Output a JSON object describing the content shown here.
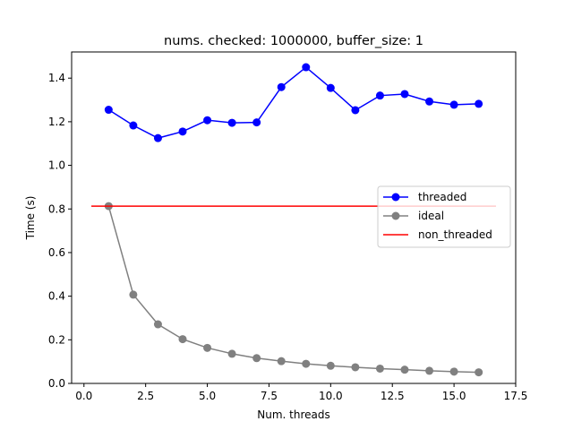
{
  "chart_data": {
    "type": "line",
    "title": "nums. checked: 1000000, buffer_size: 1",
    "xlabel": "Num. threads",
    "ylabel": "Time (s)",
    "xlim": [
      -0.5,
      17.5
    ],
    "ylim": [
      0.0,
      1.52
    ],
    "xticks": [
      0.0,
      2.5,
      5.0,
      7.5,
      10.0,
      12.5,
      15.0,
      17.5
    ],
    "xtick_labels": [
      "0.0",
      "2.5",
      "5.0",
      "7.5",
      "10.0",
      "12.5",
      "15.0",
      "17.5"
    ],
    "yticks": [
      0.0,
      0.2,
      0.4,
      0.6,
      0.8,
      1.0,
      1.2,
      1.4
    ],
    "ytick_labels": [
      "0.0",
      "0.2",
      "0.4",
      "0.6",
      "0.8",
      "1.0",
      "1.2",
      "1.4"
    ],
    "grid": false,
    "legend_position": "center-right",
    "series": [
      {
        "name": "threaded",
        "color": "#0000ff",
        "marker": "circle",
        "x": [
          1,
          2,
          3,
          4,
          5,
          6,
          7,
          8,
          9,
          10,
          11,
          12,
          13,
          14,
          15,
          16
        ],
        "y": [
          1.255,
          1.183,
          1.125,
          1.155,
          1.207,
          1.195,
          1.197,
          1.359,
          1.45,
          1.355,
          1.253,
          1.32,
          1.327,
          1.293,
          1.278,
          1.282
        ]
      },
      {
        "name": "ideal",
        "color": "#808080",
        "marker": "circle",
        "x": [
          1,
          2,
          3,
          4,
          5,
          6,
          7,
          8,
          9,
          10,
          11,
          12,
          13,
          14,
          15,
          16
        ],
        "y": [
          0.813,
          0.407,
          0.271,
          0.203,
          0.163,
          0.136,
          0.116,
          0.102,
          0.09,
          0.081,
          0.074,
          0.068,
          0.063,
          0.058,
          0.054,
          0.051
        ]
      },
      {
        "name": "non_threaded",
        "color": "#ff0000",
        "marker": "none",
        "x": [
          0.3,
          16.7
        ],
        "y": [
          0.813,
          0.813
        ]
      }
    ]
  }
}
